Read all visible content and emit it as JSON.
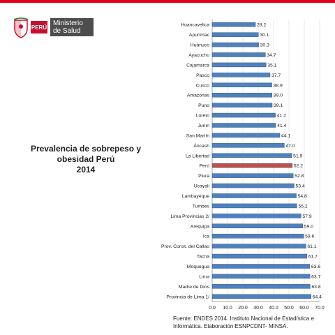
{
  "header": {
    "logo_country": "PERÚ",
    "logo_ministry_line1": "Ministerio",
    "logo_ministry_line2": "de Salud",
    "brand_color": "#e3001b"
  },
  "title_line1": "Prevalencia de sobrepeso y obesidad Perú",
  "title_line2": "2014",
  "source_line1": "Fuente: ENDES 2014. Instituto Nacional de Estadística e",
  "source_line2": "Informática. Elaboración ESNPCDNT- MINSA.",
  "chart_data": {
    "type": "bar",
    "orientation": "horizontal",
    "categories": [
      "Huancavelica",
      "Apurímac",
      "Huánuco",
      "Ayacucho",
      "Cajamarca",
      "Pasco",
      "Cusco",
      "Amazonas",
      "Puno",
      "Loreto",
      "Junín",
      "San Martín",
      "Áncash",
      "La Libertad",
      "Perú",
      "Piura",
      "Ucayali",
      "Lambayeque",
      "Tumbes",
      "Lima Provincias 2/",
      "Arequipa",
      "Ica",
      "Prov. Const. del Callao",
      "Tacna",
      "Moquegua",
      "Lima",
      "Madre de Dios",
      "Provincia de Lima 1/"
    ],
    "values": [
      28.2,
      30.1,
      30.3,
      34.7,
      35.1,
      37.7,
      38.9,
      39.0,
      39.1,
      41.2,
      41.4,
      44.1,
      47.0,
      51.9,
      52.2,
      52.8,
      53.4,
      54.8,
      55.2,
      57.9,
      59.0,
      59.6,
      61.1,
      61.7,
      63.6,
      63.7,
      63.8,
      64.4
    ],
    "value_labels": [
      "28.2",
      "30.1",
      "30.3",
      "34.7",
      "35.1",
      "37.7",
      "38.9",
      "39.0",
      "39.1",
      "41.2",
      "41.4",
      "44.1",
      "47.0",
      "51.9",
      "52.2",
      "52.8",
      "53.4",
      "54.8",
      "55.2",
      "57.9",
      "59.0",
      "59.6",
      "61.1",
      "61.7",
      "63.6",
      "63.7",
      "63.8",
      "64.4"
    ],
    "highlight_category": "Perú",
    "bar_color": "#4f81bd",
    "highlight_color": "#c0504d",
    "xlim": [
      0,
      70
    ],
    "x_ticks": [
      "0.0",
      "10.0",
      "20.0",
      "30.0",
      "40.0",
      "50.0",
      "60.0",
      "70.0"
    ],
    "grid": true
  }
}
